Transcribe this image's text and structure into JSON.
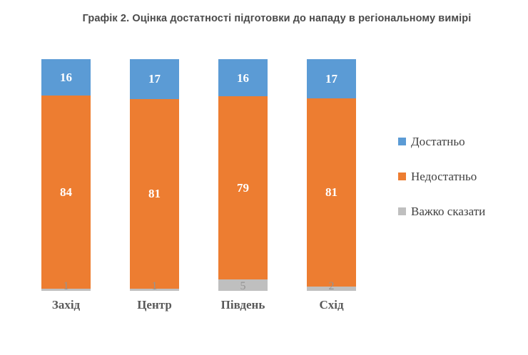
{
  "title": "Графік 2. Оцінка достатності підготовки до нападу в регіональному вимірі",
  "colors": {
    "sufficient": "#5B9BD5",
    "insufficient": "#ED7D31",
    "hard_to_say": "#BFBFBF",
    "title_text": "#4A4A4A",
    "category_text": "#595959",
    "legend_text": "#404040",
    "bar_label_text": "#FFFFFF",
    "gray_label_text": "#949494",
    "background": "#FFFFFF"
  },
  "legend": {
    "position": "right",
    "items": [
      {
        "key": "sufficient",
        "label": "Достатньо",
        "color": "#5B9BD5"
      },
      {
        "key": "insufficient",
        "label": "Недостатньо",
        "color": "#ED7D31"
      },
      {
        "key": "hard_to_say",
        "label": "Важко сказати",
        "color": "#BFBFBF"
      }
    ]
  },
  "chart_data": {
    "type": "bar",
    "stacked": true,
    "orientation": "vertical",
    "title": "Графік 2. Оцінка достатності підготовки до нападу в регіональному вимірі",
    "categories": [
      "Захід",
      "Центр",
      "Південь",
      "Схід"
    ],
    "series": [
      {
        "key": "sufficient",
        "name": "Достатньо",
        "color": "#5B9BD5",
        "values": [
          16,
          17,
          16,
          17
        ]
      },
      {
        "key": "insufficient",
        "name": "Недостатньо",
        "color": "#ED7D31",
        "values": [
          84,
          81,
          79,
          81
        ]
      },
      {
        "key": "hard_to_say",
        "name": "Важко сказати",
        "color": "#BFBFBF",
        "values": [
          1,
          1,
          5,
          2
        ]
      }
    ],
    "xlabel": "",
    "ylabel": "",
    "ylim": [
      0,
      101
    ],
    "grid": false,
    "axis_lines": false,
    "data_labels": true,
    "legend_position": "right"
  }
}
